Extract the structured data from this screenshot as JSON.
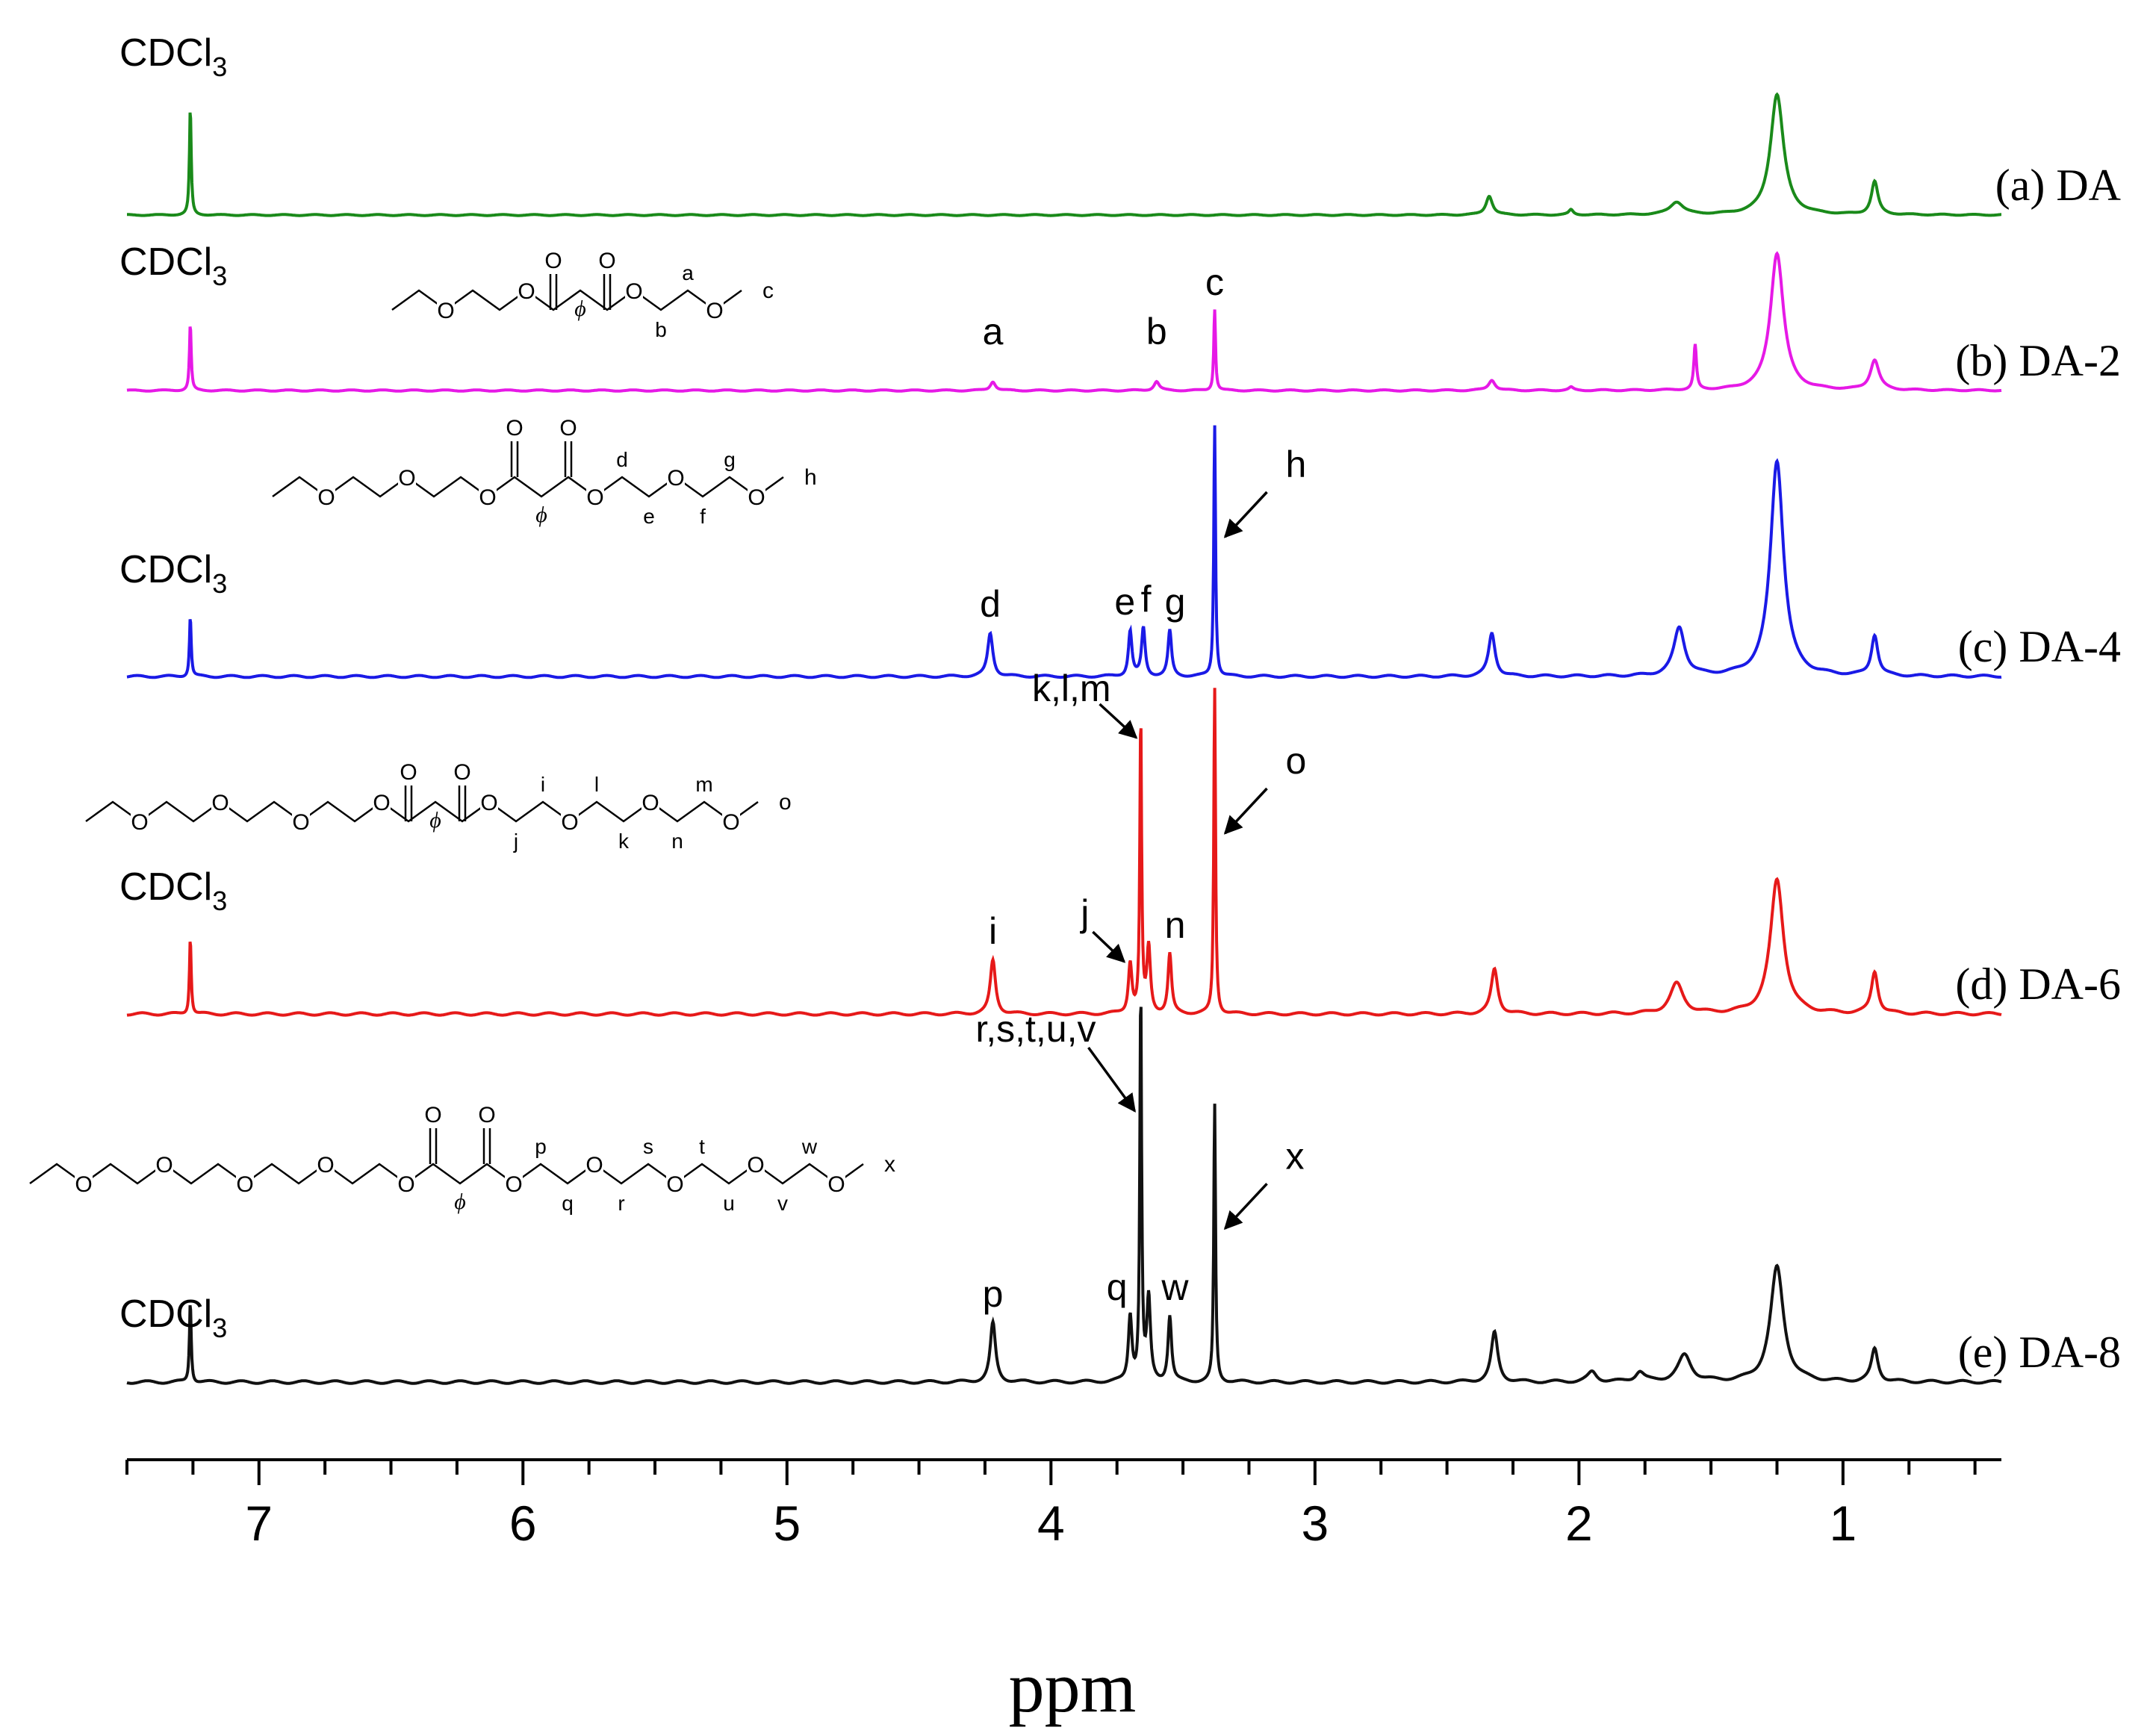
{
  "chart_data": {
    "type": "line",
    "title": "",
    "xlabel": "ppm",
    "ylabel": "",
    "xlim": [
      7.5,
      0.4
    ],
    "xaxis_reversed": true,
    "xticks": [
      7,
      6,
      5,
      4,
      3,
      2,
      1
    ],
    "xtick_labels": [
      "7",
      "6",
      "5",
      "4",
      "3",
      "2",
      "1"
    ],
    "minor_tick_step": 0.25,
    "grid": false,
    "series": [
      {
        "name": "(a) DA",
        "label": "(a) DA",
        "color": "#1a8a1a",
        "solvent_label": "CDCl",
        "solvent_subscript": "3",
        "peaks": [
          {
            "ppm": 7.26,
            "height": 0.85,
            "width": 0.004
          },
          {
            "ppm": 2.34,
            "height": 0.15,
            "width": 0.015
          },
          {
            "ppm": 2.03,
            "height": 0.04,
            "width": 0.01
          },
          {
            "ppm": 1.63,
            "height": 0.1,
            "width": 0.03
          },
          {
            "ppm": 1.25,
            "height": 0.95,
            "width": 0.03
          },
          {
            "ppm": 0.88,
            "height": 0.26,
            "width": 0.015
          }
        ],
        "labels": [],
        "structure": null
      },
      {
        "name": "(b) DA-2",
        "label": "(b) DA-2",
        "color": "#e619e6",
        "solvent_label": "CDCl",
        "solvent_subscript": "3",
        "peaks": [
          {
            "ppm": 7.26,
            "height": 0.45,
            "width": 0.004
          },
          {
            "ppm": 4.22,
            "height": 0.06,
            "width": 0.012
          },
          {
            "ppm": 3.6,
            "height": 0.06,
            "width": 0.012
          },
          {
            "ppm": 3.38,
            "height": 0.55,
            "width": 0.004
          },
          {
            "ppm": 2.33,
            "height": 0.07,
            "width": 0.015
          },
          {
            "ppm": 2.03,
            "height": 0.02,
            "width": 0.01
          },
          {
            "ppm": 1.56,
            "height": 0.3,
            "width": 0.006
          },
          {
            "ppm": 1.25,
            "height": 0.92,
            "width": 0.03
          },
          {
            "ppm": 0.88,
            "height": 0.2,
            "width": 0.02
          }
        ],
        "labels": [
          {
            "text": "a",
            "ppm": 4.22
          },
          {
            "text": "b",
            "ppm": 3.6
          },
          {
            "text": "c",
            "ppm": 3.38
          }
        ],
        "structure": {
          "pre_os": 1,
          "letters_top": [
            "a"
          ],
          "letters_bottom": [
            "b"
          ],
          "end": "c",
          "symbol": "ϕ",
          "carbonyl": "O"
        }
      },
      {
        "name": "(c) DA-4",
        "label": "(c) DA-4",
        "color": "#1a1ae6",
        "solvent_label": "CDCl",
        "solvent_subscript": "3",
        "peaks": [
          {
            "ppm": 7.26,
            "height": 0.24,
            "width": 0.004
          },
          {
            "ppm": 4.23,
            "height": 0.17,
            "width": 0.012
          },
          {
            "ppm": 3.7,
            "height": 0.18,
            "width": 0.008
          },
          {
            "ppm": 3.65,
            "height": 0.19,
            "width": 0.008
          },
          {
            "ppm": 3.55,
            "height": 0.18,
            "width": 0.008
          },
          {
            "ppm": 3.38,
            "height": 1.0,
            "width": 0.004
          },
          {
            "ppm": 2.33,
            "height": 0.17,
            "width": 0.015
          },
          {
            "ppm": 1.62,
            "height": 0.19,
            "width": 0.025
          },
          {
            "ppm": 1.25,
            "height": 0.85,
            "width": 0.03
          },
          {
            "ppm": 0.88,
            "height": 0.16,
            "width": 0.015
          }
        ],
        "labels": [
          {
            "text": "d",
            "ppm": 4.23
          },
          {
            "text": "e",
            "ppm": 3.72
          },
          {
            "text": "f",
            "ppm": 3.64
          },
          {
            "text": "g",
            "ppm": 3.53
          }
        ],
        "arrows": [
          {
            "text": "h",
            "ppm": 3.38
          }
        ],
        "structure": {
          "pre_os": 2,
          "letters_top": [
            "d",
            "g"
          ],
          "letters_bottom": [
            "e",
            "f"
          ],
          "end": "h",
          "symbol": "ϕ",
          "carbonyl": "O"
        }
      },
      {
        "name": "(d) DA-6",
        "label": "(d) DA-6",
        "color": "#e61919",
        "solvent_label": "CDCl",
        "solvent_subscript": "3",
        "peaks": [
          {
            "ppm": 7.26,
            "height": 0.26,
            "width": 0.004
          },
          {
            "ppm": 4.22,
            "height": 0.18,
            "width": 0.012
          },
          {
            "ppm": 3.7,
            "height": 0.17,
            "width": 0.008
          },
          {
            "ppm": 3.66,
            "height": 1.0,
            "width": 0.004
          },
          {
            "ppm": 3.63,
            "height": 0.22,
            "width": 0.008
          },
          {
            "ppm": 3.55,
            "height": 0.2,
            "width": 0.008
          },
          {
            "ppm": 3.38,
            "height": 1.1,
            "width": 0.004
          },
          {
            "ppm": 2.32,
            "height": 0.15,
            "width": 0.015
          },
          {
            "ppm": 1.63,
            "height": 0.1,
            "width": 0.03
          },
          {
            "ppm": 1.25,
            "height": 0.45,
            "width": 0.03
          },
          {
            "ppm": 0.88,
            "height": 0.14,
            "width": 0.015
          }
        ],
        "labels": [
          {
            "text": "i",
            "ppm": 4.22
          },
          {
            "text": "n",
            "ppm": 3.53
          }
        ],
        "arrows": [
          {
            "text": "k,l,m",
            "ppm": 3.66
          },
          {
            "text": "j",
            "ppm": 3.7
          },
          {
            "text": "o",
            "ppm": 3.38
          }
        ],
        "structure": {
          "pre_os": 3,
          "letters_top": [
            "i",
            "l",
            "m"
          ],
          "letters_bottom": [
            "j",
            "k",
            "n"
          ],
          "end": "o",
          "symbol": "ϕ",
          "carbonyl": "O"
        }
      },
      {
        "name": "(e) DA-8",
        "label": "(e) DA-8",
        "color": "#111111",
        "solvent_label": "CDCl",
        "solvent_subscript": "3",
        "peaks": [
          {
            "ppm": 7.26,
            "height": 0.25,
            "width": 0.004
          },
          {
            "ppm": 4.22,
            "height": 0.18,
            "width": 0.012
          },
          {
            "ppm": 3.7,
            "height": 0.2,
            "width": 0.008
          },
          {
            "ppm": 3.66,
            "height": 1.2,
            "width": 0.004
          },
          {
            "ppm": 3.63,
            "height": 0.25,
            "width": 0.008
          },
          {
            "ppm": 3.55,
            "height": 0.2,
            "width": 0.008
          },
          {
            "ppm": 3.38,
            "height": 0.85,
            "width": 0.004
          },
          {
            "ppm": 2.32,
            "height": 0.15,
            "width": 0.015
          },
          {
            "ppm": 1.95,
            "height": 0.03,
            "width": 0.02
          },
          {
            "ppm": 1.77,
            "height": 0.03,
            "width": 0.02
          },
          {
            "ppm": 1.6,
            "height": 0.08,
            "width": 0.03
          },
          {
            "ppm": 1.25,
            "height": 0.35,
            "width": 0.03
          },
          {
            "ppm": 0.88,
            "height": 0.1,
            "width": 0.015
          }
        ],
        "labels": [
          {
            "text": "p",
            "ppm": 4.22
          },
          {
            "text": "q",
            "ppm": 3.75
          },
          {
            "text": "w",
            "ppm": 3.53
          }
        ],
        "arrows": [
          {
            "text": "r,s,t,u,v",
            "ppm": 3.66
          },
          {
            "text": "x",
            "ppm": 3.38
          }
        ],
        "structure": {
          "pre_os": 4,
          "letters_top": [
            "p",
            "s",
            "t",
            "w"
          ],
          "letters_bottom": [
            "q",
            "r",
            "u",
            "v"
          ],
          "end": "x",
          "symbol": "ϕ",
          "carbonyl": "O"
        }
      }
    ]
  }
}
